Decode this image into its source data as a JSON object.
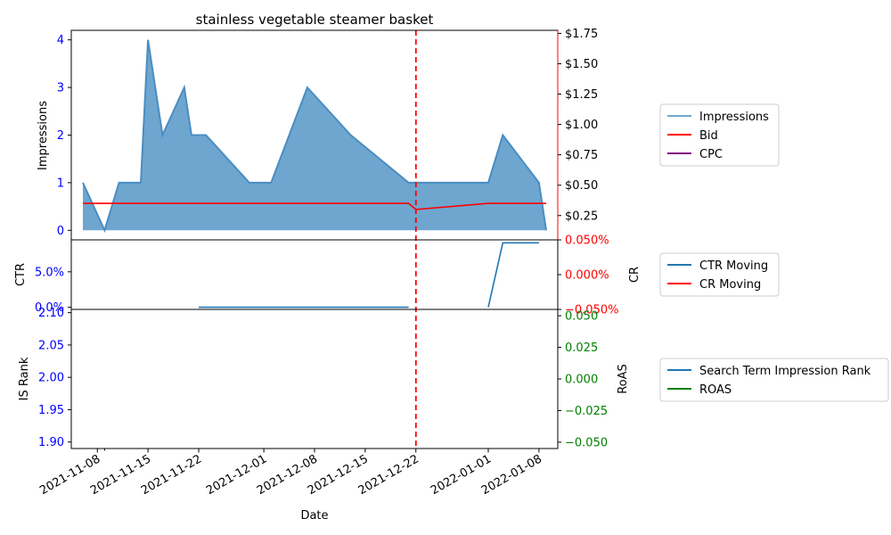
{
  "chart_data": [
    {
      "type": "area",
      "panel": "top",
      "title": "stainless vegetable steamer basket",
      "ylabel_left": "Impressions",
      "ylim_left": [
        -0.2,
        4.2
      ],
      "yticks_left": [
        "0",
        "1",
        "2",
        "3",
        "4"
      ],
      "ylim_right": [
        0.05,
        1.775
      ],
      "yticks_right": [
        "$0.25",
        "$0.50",
        "$0.75",
        "$1.00",
        "$1.25",
        "$1.50",
        "$1.75"
      ],
      "legend": [
        "Impressions",
        "Bid",
        "CPC"
      ],
      "series": [
        {
          "name": "Impressions",
          "axis": "left",
          "x": [
            "2021-11-06",
            "2021-11-09",
            "2021-11-11",
            "2021-11-14",
            "2021-11-15",
            "2021-11-17",
            "2021-11-20",
            "2021-11-21",
            "2021-11-23",
            "2021-11-29",
            "2021-12-02",
            "2021-12-07",
            "2021-12-13",
            "2021-12-21",
            "2021-12-22",
            "2021-12-23",
            "2022-01-01",
            "2022-01-03",
            "2022-01-08",
            "2022-01-09"
          ],
          "values": [
            1,
            0,
            1,
            1,
            4,
            2,
            3,
            2,
            2,
            1,
            1,
            3,
            2,
            1,
            1,
            1,
            1,
            2,
            1,
            0
          ]
        },
        {
          "name": "Bid",
          "axis": "right",
          "x": [
            "2021-11-06",
            "2021-12-21",
            "2021-12-22",
            "2022-01-01",
            "2022-01-09"
          ],
          "values": [
            0.35,
            0.35,
            0.3,
            0.35,
            0.35
          ]
        }
      ]
    },
    {
      "type": "line",
      "panel": "middle",
      "ylabel_left": "CTR",
      "ylabel_right": "CR",
      "ylim_left": [
        -0.003,
        0.095
      ],
      "yticks_left": [
        "0.0%",
        "5.0%"
      ],
      "ylim_right": [
        -0.05,
        0.05
      ],
      "yticks_right": [
        "−0.050%",
        "0.000%",
        "0.050%"
      ],
      "legend": [
        "CTR Moving",
        "CR Moving"
      ],
      "series": [
        {
          "name": "CTR Moving",
          "axis": "left",
          "x": [
            "2021-11-22",
            "2021-12-21"
          ],
          "values": [
            0,
            0
          ]
        },
        {
          "name": "CTR Moving",
          "axis": "left",
          "x": [
            "2022-01-01",
            "2022-01-03",
            "2022-01-08"
          ],
          "values": [
            0,
            0.0909,
            0.0909
          ]
        }
      ]
    },
    {
      "type": "line",
      "panel": "bottom",
      "ylabel_left": "IS Rank",
      "ylabel_right": "RoAS",
      "xlabel": "Date",
      "ylim_left": [
        1.89,
        2.105
      ],
      "yticks_left": [
        "1.90",
        "1.95",
        "2.00",
        "2.05",
        "2.10"
      ],
      "ylim_right": [
        -0.055,
        0.055
      ],
      "yticks_right": [
        "−0.050",
        "−0.025",
        "0.000",
        "0.025",
        "0.050"
      ],
      "xticks": [
        "2021-11-08",
        "2021-11-15",
        "2021-11-22",
        "2021-12-01",
        "2021-12-08",
        "2021-12-15",
        "2021-12-22",
        "2022-01-01",
        "2022-01-08"
      ],
      "legend": [
        "Search Term Impression Rank",
        "ROAS"
      ],
      "series": []
    }
  ],
  "marker_date": "2021-12-22",
  "colors": {
    "impressions_fill": "#6ea6cf",
    "impressions_line": "#4a8dc2",
    "bid": "#ff0000",
    "cpc": "#800080",
    "ctr": "#1f77b4",
    "cr": "#ff0000",
    "is_rank": "#1f77b4",
    "roas": "#008000",
    "marker": "#ff0000",
    "left_tick": "#0000ff",
    "right_tick_money": "#000000",
    "right_tick_cr": "#ff0000",
    "right_tick_roas": "#008000"
  }
}
